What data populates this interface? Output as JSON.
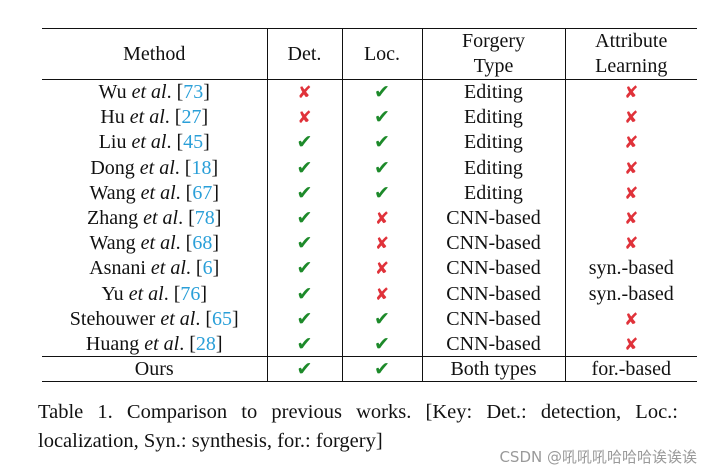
{
  "table": {
    "headers": {
      "method": "Method",
      "det": "Det.",
      "loc": "Loc.",
      "forgery_type": [
        "Forgery",
        "Type"
      ],
      "attribute_learning": [
        "Attribute",
        "Learning"
      ]
    },
    "rows": [
      {
        "author": "Wu",
        "etal": "et al",
        "ref": "73",
        "det": "no",
        "loc": "yes",
        "forgery_type": "Editing",
        "attribute": "no"
      },
      {
        "author": "Hu",
        "etal": "et al",
        "ref": "27",
        "det": "no",
        "loc": "yes",
        "forgery_type": "Editing",
        "attribute": "no"
      },
      {
        "author": "Liu",
        "etal": "et al",
        "ref": "45",
        "det": "yes",
        "loc": "yes",
        "forgery_type": "Editing",
        "attribute": "no"
      },
      {
        "author": "Dong",
        "etal": "et al",
        "ref": "18",
        "det": "yes",
        "loc": "yes",
        "forgery_type": "Editing",
        "attribute": "no"
      },
      {
        "author": "Wang",
        "etal": "et al",
        "ref": "67",
        "det": "yes",
        "loc": "yes",
        "forgery_type": "Editing",
        "attribute": "no"
      },
      {
        "author": "Zhang",
        "etal": "et al",
        "ref": "78",
        "det": "yes",
        "loc": "no",
        "forgery_type": "CNN-based",
        "attribute": "no"
      },
      {
        "author": "Wang",
        "etal": "et al",
        "ref": "68",
        "det": "yes",
        "loc": "no",
        "forgery_type": "CNN-based",
        "attribute": "no"
      },
      {
        "author": "Asnani",
        "etal": "et al",
        "ref": "6",
        "det": "yes",
        "loc": "no",
        "forgery_type": "CNN-based",
        "attribute": "syn.-based"
      },
      {
        "author": "Yu",
        "etal": "et al",
        "ref": "76",
        "det": "yes",
        "loc": "no",
        "forgery_type": "CNN-based",
        "attribute": "syn.-based"
      },
      {
        "author": "Stehouwer",
        "etal": "et al",
        "ref": "65",
        "det": "yes",
        "loc": "yes",
        "forgery_type": "CNN-based",
        "attribute": "no"
      },
      {
        "author": "Huang",
        "etal": "et al",
        "ref": "28",
        "det": "yes",
        "loc": "yes",
        "forgery_type": "CNN-based",
        "attribute": "no"
      }
    ],
    "ours": {
      "method": "Ours",
      "det": "yes",
      "loc": "yes",
      "forgery_type": "Both types",
      "attribute": "for.-based"
    }
  },
  "symbols": {
    "yes": "✔",
    "no": "✘",
    "yes_color": "#1d8a2a",
    "no_color": "#e0323a",
    "cite_color": "#2a9fd8"
  },
  "caption": {
    "text": "Table 1.  Comparison to previous works.  [Key: Det.: detection, Loc.: localization, Syn.: synthesis, for.: forgery]"
  },
  "watermark": "CSDN @吼吼吼哈哈哈诶诶诶"
}
